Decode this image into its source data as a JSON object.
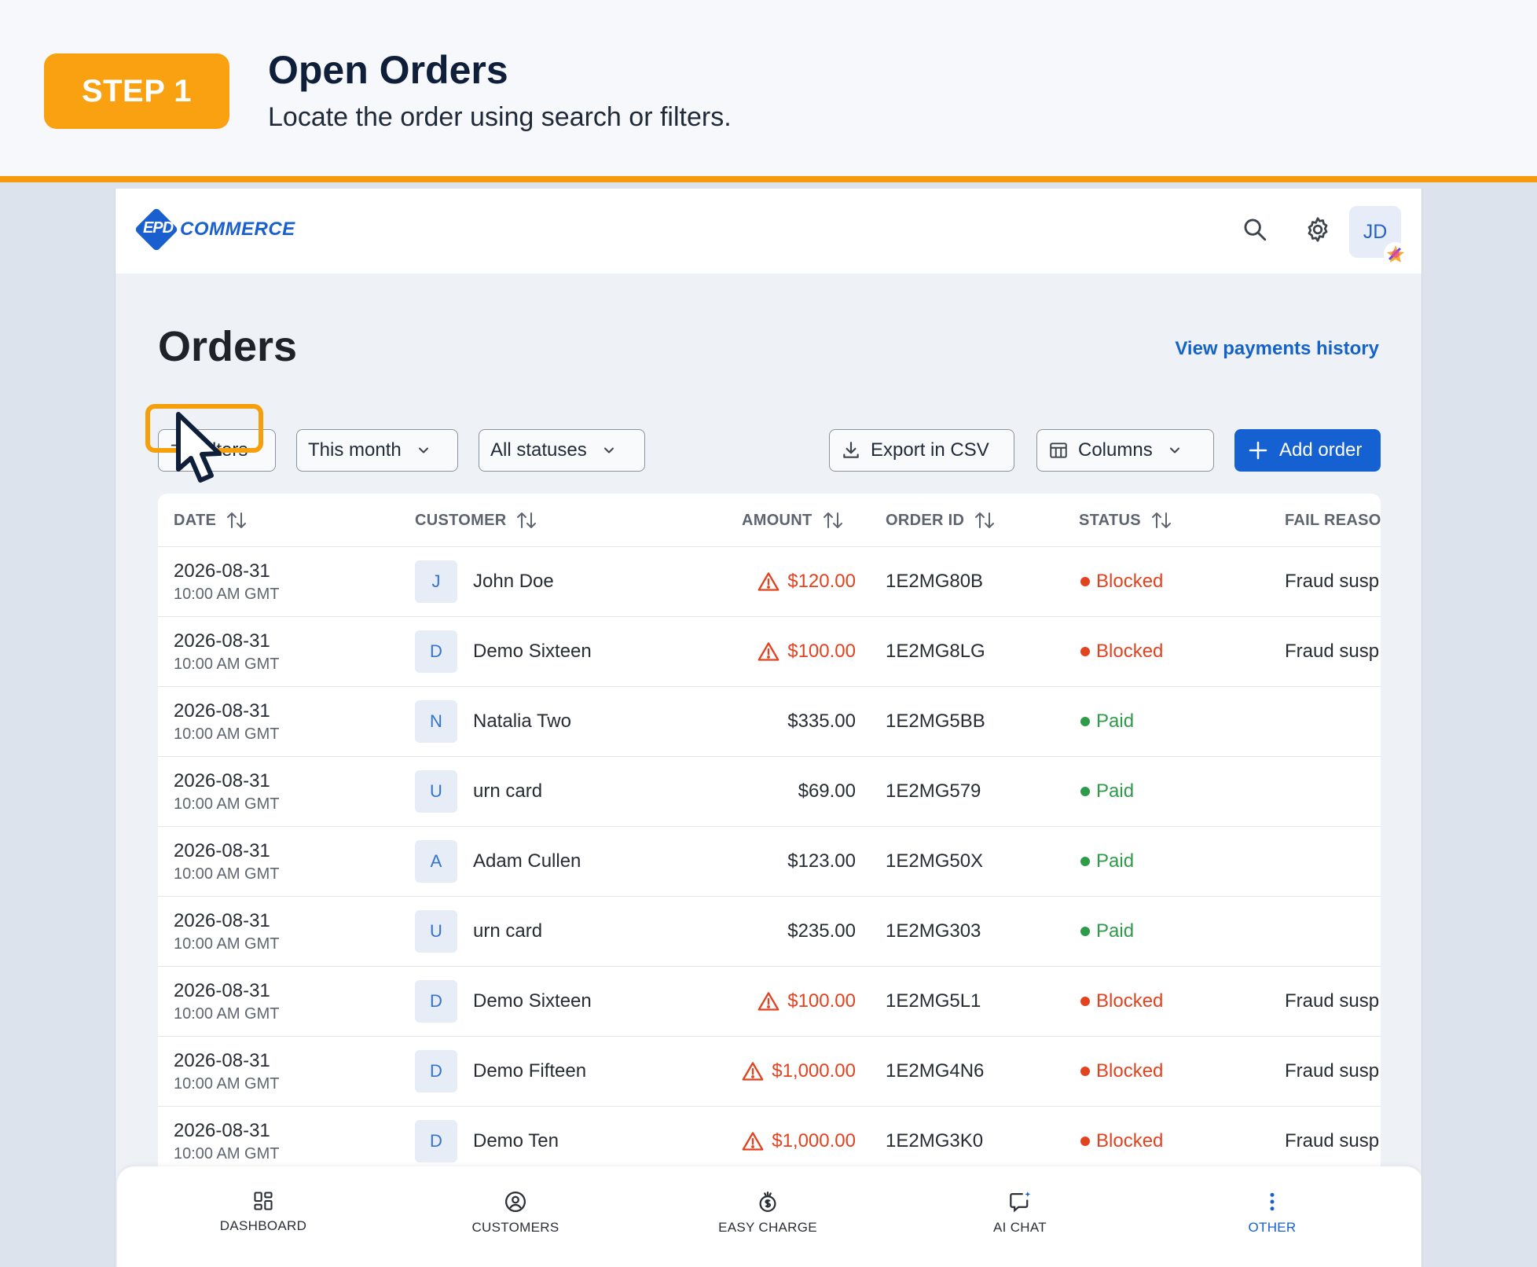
{
  "step": {
    "badge": "STEP 1",
    "title": "Open Orders",
    "subtitle": "Locate the order using search or filters."
  },
  "app": {
    "logo_mark": "EPD",
    "logo_word": "COMMERCE",
    "user_initials": "JD",
    "page_title": "Orders",
    "payments_link": "View payments history"
  },
  "toolbar": {
    "filters_label": "Filters",
    "period": "This month",
    "status": "All statuses",
    "export": "Export in CSV",
    "columns": "Columns",
    "add": "Add order"
  },
  "table": {
    "headers": [
      "DATE",
      "CUSTOMER",
      "AMOUNT",
      "ORDER ID",
      "STATUS",
      "FAIL REASON"
    ],
    "rows": [
      {
        "date": "2026-08-31",
        "time": "10:00 AM GMT",
        "initial": "J",
        "customer": "John Doe",
        "amount": "$120.00",
        "warn": true,
        "order_id": "1E2MG80B",
        "status": "Blocked",
        "fail": "Fraud susp"
      },
      {
        "date": "2026-08-31",
        "time": "10:00 AM GMT",
        "initial": "D",
        "customer": "Demo Sixteen",
        "amount": "$100.00",
        "warn": true,
        "order_id": "1E2MG8LG",
        "status": "Blocked",
        "fail": "Fraud susp"
      },
      {
        "date": "2026-08-31",
        "time": "10:00 AM GMT",
        "initial": "N",
        "customer": "Natalia Two",
        "amount": "$335.00",
        "warn": false,
        "order_id": "1E2MG5BB",
        "status": "Paid",
        "fail": ""
      },
      {
        "date": "2026-08-31",
        "time": "10:00 AM GMT",
        "initial": "U",
        "customer": "urn card",
        "amount": "$69.00",
        "warn": false,
        "order_id": "1E2MG579",
        "status": "Paid",
        "fail": ""
      },
      {
        "date": "2026-08-31",
        "time": "10:00 AM GMT",
        "initial": "A",
        "customer": "Adam Cullen",
        "amount": "$123.00",
        "warn": false,
        "order_id": "1E2MG50X",
        "status": "Paid",
        "fail": ""
      },
      {
        "date": "2026-08-31",
        "time": "10:00 AM GMT",
        "initial": "U",
        "customer": "urn card",
        "amount": "$235.00",
        "warn": false,
        "order_id": "1E2MG303",
        "status": "Paid",
        "fail": ""
      },
      {
        "date": "2026-08-31",
        "time": "10:00 AM GMT",
        "initial": "D",
        "customer": "Demo Sixteen",
        "amount": "$100.00",
        "warn": true,
        "order_id": "1E2MG5L1",
        "status": "Blocked",
        "fail": "Fraud susp"
      },
      {
        "date": "2026-08-31",
        "time": "10:00 AM GMT",
        "initial": "D",
        "customer": "Demo Fifteen",
        "amount": "$1,000.00",
        "warn": true,
        "order_id": "1E2MG4N6",
        "status": "Blocked",
        "fail": "Fraud susp"
      },
      {
        "date": "2026-08-31",
        "time": "10:00 AM GMT",
        "initial": "D",
        "customer": "Demo Ten",
        "amount": "$1,000.00",
        "warn": true,
        "order_id": "1E2MG3K0",
        "status": "Blocked",
        "fail": "Fraud susp"
      }
    ]
  },
  "nav": [
    {
      "label": "DASHBOARD",
      "icon": "dashboard-icon"
    },
    {
      "label": "CUSTOMERS",
      "icon": "customers-icon"
    },
    {
      "label": "EASY CHARGE",
      "icon": "easy-charge-icon"
    },
    {
      "label": "AI CHAT",
      "icon": "ai-chat-icon"
    },
    {
      "label": "OTHER",
      "icon": "more-icon",
      "active": true
    }
  ],
  "colors": {
    "accent": "#1561d2",
    "step_orange": "#f9a110",
    "blocked": "#e3421f",
    "paid": "#2e9b49"
  }
}
